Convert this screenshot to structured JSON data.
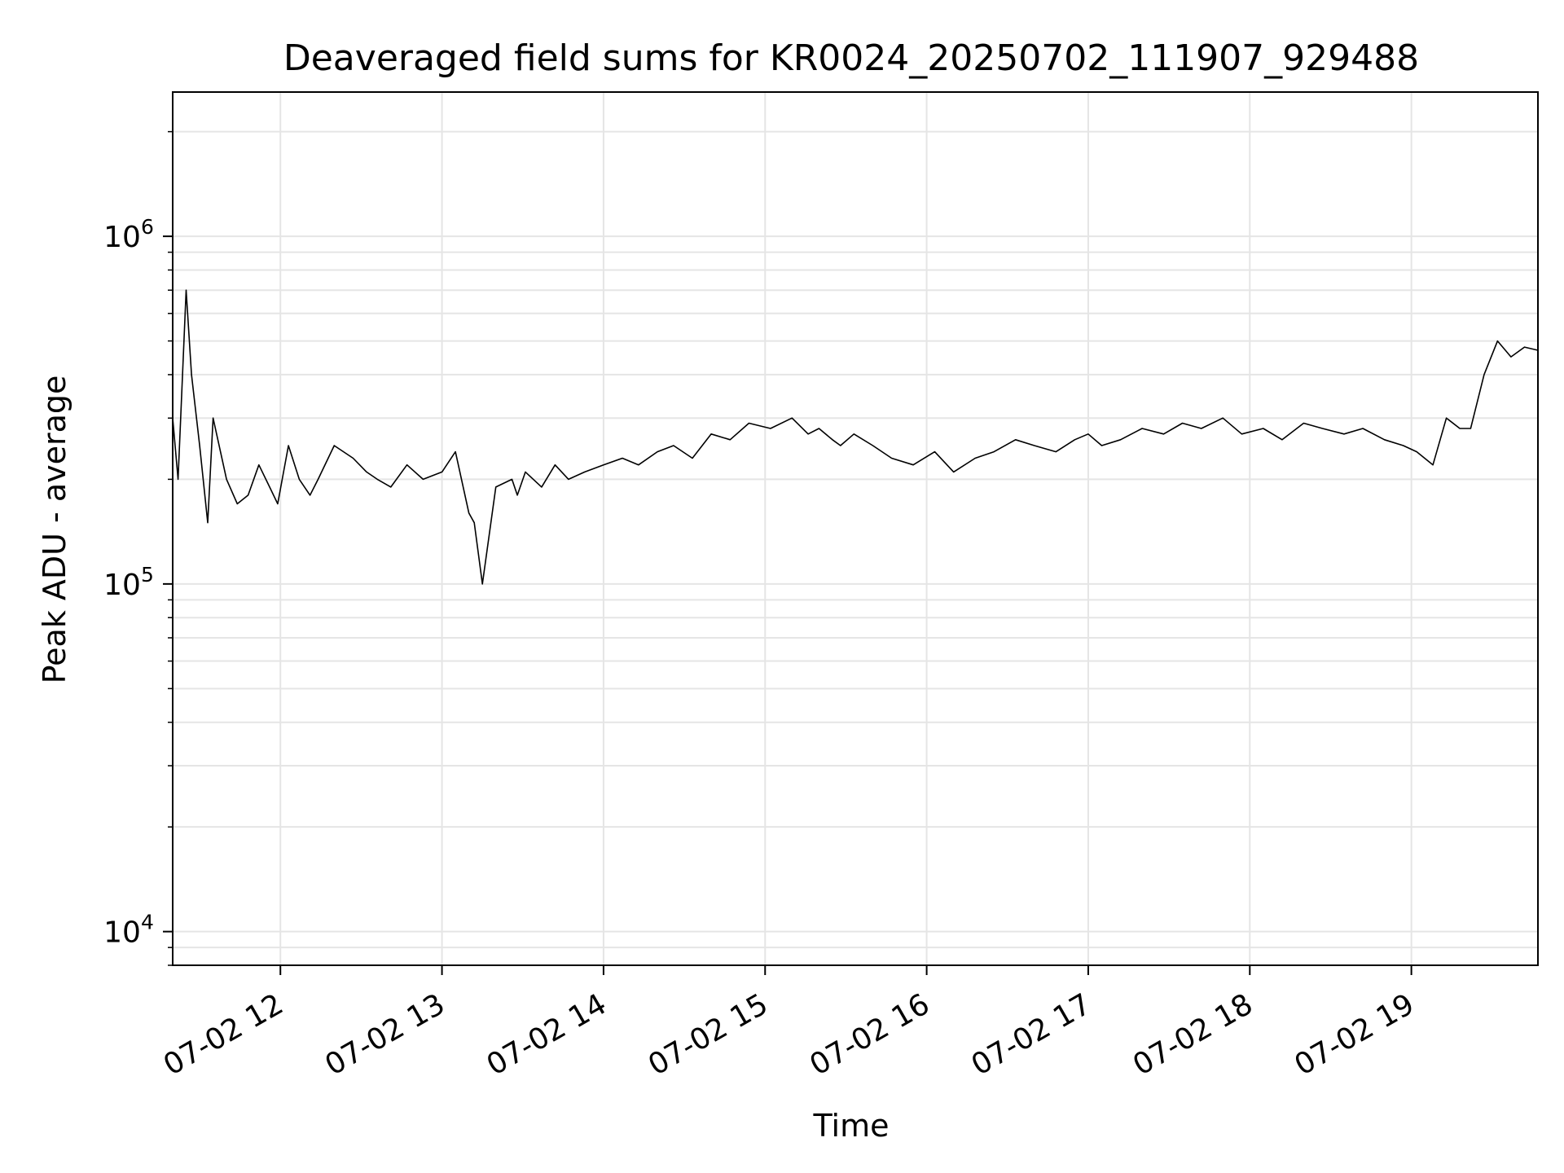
{
  "chart_data": {
    "type": "line",
    "title": "Deaveraged field sums for KR0024_20250702_111907_929488",
    "xlabel": "Time",
    "ylabel": "Peak ADU - average",
    "yscale": "log",
    "ylim": [
      8000,
      2600000
    ],
    "xlim": [
      "2025-07-02T11:20",
      "2025-07-02T19:47"
    ],
    "x_ticks": [
      "07-02 12",
      "07-02 13",
      "07-02 14",
      "07-02 15",
      "07-02 16",
      "07-02 17",
      "07-02 18",
      "07-02 19"
    ],
    "y_ticks": [
      {
        "base": "10",
        "exp": "4"
      },
      {
        "base": "10",
        "exp": "5"
      },
      {
        "base": "10",
        "exp": "6"
      }
    ],
    "grid": true,
    "line_color": "#000000",
    "grid_color": "#e5e5e5",
    "series": [
      {
        "x": [
          "2025-07-02T11:20",
          "2025-07-02T11:22",
          "2025-07-02T11:25",
          "2025-07-02T11:27",
          "2025-07-02T11:30",
          "2025-07-02T11:33",
          "2025-07-02T11:35",
          "2025-07-02T11:40",
          "2025-07-02T11:44",
          "2025-07-02T11:48",
          "2025-07-02T11:52",
          "2025-07-02T11:56",
          "2025-07-02T11:59",
          "2025-07-02T12:03",
          "2025-07-02T12:07",
          "2025-07-02T12:11",
          "2025-07-02T12:14",
          "2025-07-02T12:20",
          "2025-07-02T12:27",
          "2025-07-02T12:32",
          "2025-07-02T12:36",
          "2025-07-02T12:41",
          "2025-07-02T12:47",
          "2025-07-02T12:53",
          "2025-07-02T13:00",
          "2025-07-02T13:05",
          "2025-07-02T13:10",
          "2025-07-02T13:12",
          "2025-07-02T13:15",
          "2025-07-02T13:20",
          "2025-07-02T13:26",
          "2025-07-02T13:28",
          "2025-07-02T13:31",
          "2025-07-02T13:37",
          "2025-07-02T13:42",
          "2025-07-02T13:47",
          "2025-07-02T13:53",
          "2025-07-02T14:00",
          "2025-07-02T14:07",
          "2025-07-02T14:13",
          "2025-07-02T14:20",
          "2025-07-02T14:26",
          "2025-07-02T14:33",
          "2025-07-02T14:40",
          "2025-07-02T14:47",
          "2025-07-02T14:54",
          "2025-07-02T15:02",
          "2025-07-02T15:10",
          "2025-07-02T15:16",
          "2025-07-02T15:20",
          "2025-07-02T15:25",
          "2025-07-02T15:28",
          "2025-07-02T15:33",
          "2025-07-02T15:40",
          "2025-07-02T15:47",
          "2025-07-02T15:55",
          "2025-07-02T16:03",
          "2025-07-02T16:10",
          "2025-07-02T16:18",
          "2025-07-02T16:25",
          "2025-07-02T16:33",
          "2025-07-02T16:40",
          "2025-07-02T16:48",
          "2025-07-02T16:55",
          "2025-07-02T17:00",
          "2025-07-02T17:05",
          "2025-07-02T17:12",
          "2025-07-02T17:20",
          "2025-07-02T17:28",
          "2025-07-02T17:35",
          "2025-07-02T17:42",
          "2025-07-02T17:50",
          "2025-07-02T17:57",
          "2025-07-02T18:05",
          "2025-07-02T18:12",
          "2025-07-02T18:20",
          "2025-07-02T18:27",
          "2025-07-02T18:35",
          "2025-07-02T18:42",
          "2025-07-02T18:50",
          "2025-07-02T18:57",
          "2025-07-02T19:02",
          "2025-07-02T19:08",
          "2025-07-02T19:13",
          "2025-07-02T19:18",
          "2025-07-02T19:22",
          "2025-07-02T19:27",
          "2025-07-02T19:32",
          "2025-07-02T19:37",
          "2025-07-02T19:42",
          "2025-07-02T19:47"
        ],
        "y": [
          300000,
          200000,
          700000,
          400000,
          250000,
          150000,
          300000,
          200000,
          170000,
          180000,
          220000,
          190000,
          170000,
          250000,
          200000,
          180000,
          200000,
          250000,
          230000,
          210000,
          200000,
          190000,
          220000,
          200000,
          210000,
          240000,
          160000,
          150000,
          100000,
          190000,
          200000,
          180000,
          210000,
          190000,
          220000,
          200000,
          210000,
          220000,
          230000,
          220000,
          240000,
          250000,
          230000,
          270000,
          260000,
          290000,
          280000,
          300000,
          270000,
          280000,
          260000,
          250000,
          270000,
          250000,
          230000,
          220000,
          240000,
          210000,
          230000,
          240000,
          260000,
          250000,
          240000,
          260000,
          270000,
          250000,
          260000,
          280000,
          270000,
          290000,
          280000,
          300000,
          270000,
          280000,
          260000,
          290000,
          280000,
          270000,
          280000,
          260000,
          250000,
          240000,
          220000,
          300000,
          280000,
          280000,
          400000,
          500000,
          450000,
          480000,
          470000
        ]
      }
    ]
  }
}
